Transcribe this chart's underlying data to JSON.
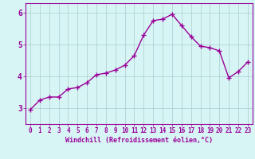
{
  "x": [
    0,
    1,
    2,
    3,
    4,
    5,
    6,
    7,
    8,
    9,
    10,
    11,
    12,
    13,
    14,
    15,
    16,
    17,
    18,
    19,
    20,
    21,
    22,
    23
  ],
  "y": [
    2.95,
    3.25,
    3.35,
    3.35,
    3.6,
    3.65,
    3.8,
    4.05,
    4.1,
    4.2,
    4.35,
    4.65,
    5.3,
    5.75,
    5.8,
    5.95,
    5.6,
    5.25,
    4.95,
    4.9,
    4.8,
    3.95,
    4.15,
    4.45
  ],
  "line_color": "#990099",
  "marker": "+",
  "marker_size": 4,
  "background_color": "#d8f5f5",
  "grid_color": "#aacccc",
  "xlabel": "Windchill (Refroidissement éolien,°C)",
  "xlabel_color": "#990099",
  "tick_color": "#990099",
  "spine_color": "#990099",
  "ylim": [
    2.5,
    6.3
  ],
  "xlim": [
    -0.5,
    23.5
  ],
  "yticks": [
    3,
    4,
    5,
    6
  ],
  "xticks": [
    0,
    1,
    2,
    3,
    4,
    5,
    6,
    7,
    8,
    9,
    10,
    11,
    12,
    13,
    14,
    15,
    16,
    17,
    18,
    19,
    20,
    21,
    22,
    23
  ],
  "tick_fontsize": 5.5,
  "ylabel_fontsize": 7,
  "xlabel_fontsize": 6.0,
  "linewidth": 1.0,
  "markeredgewidth": 1.0
}
